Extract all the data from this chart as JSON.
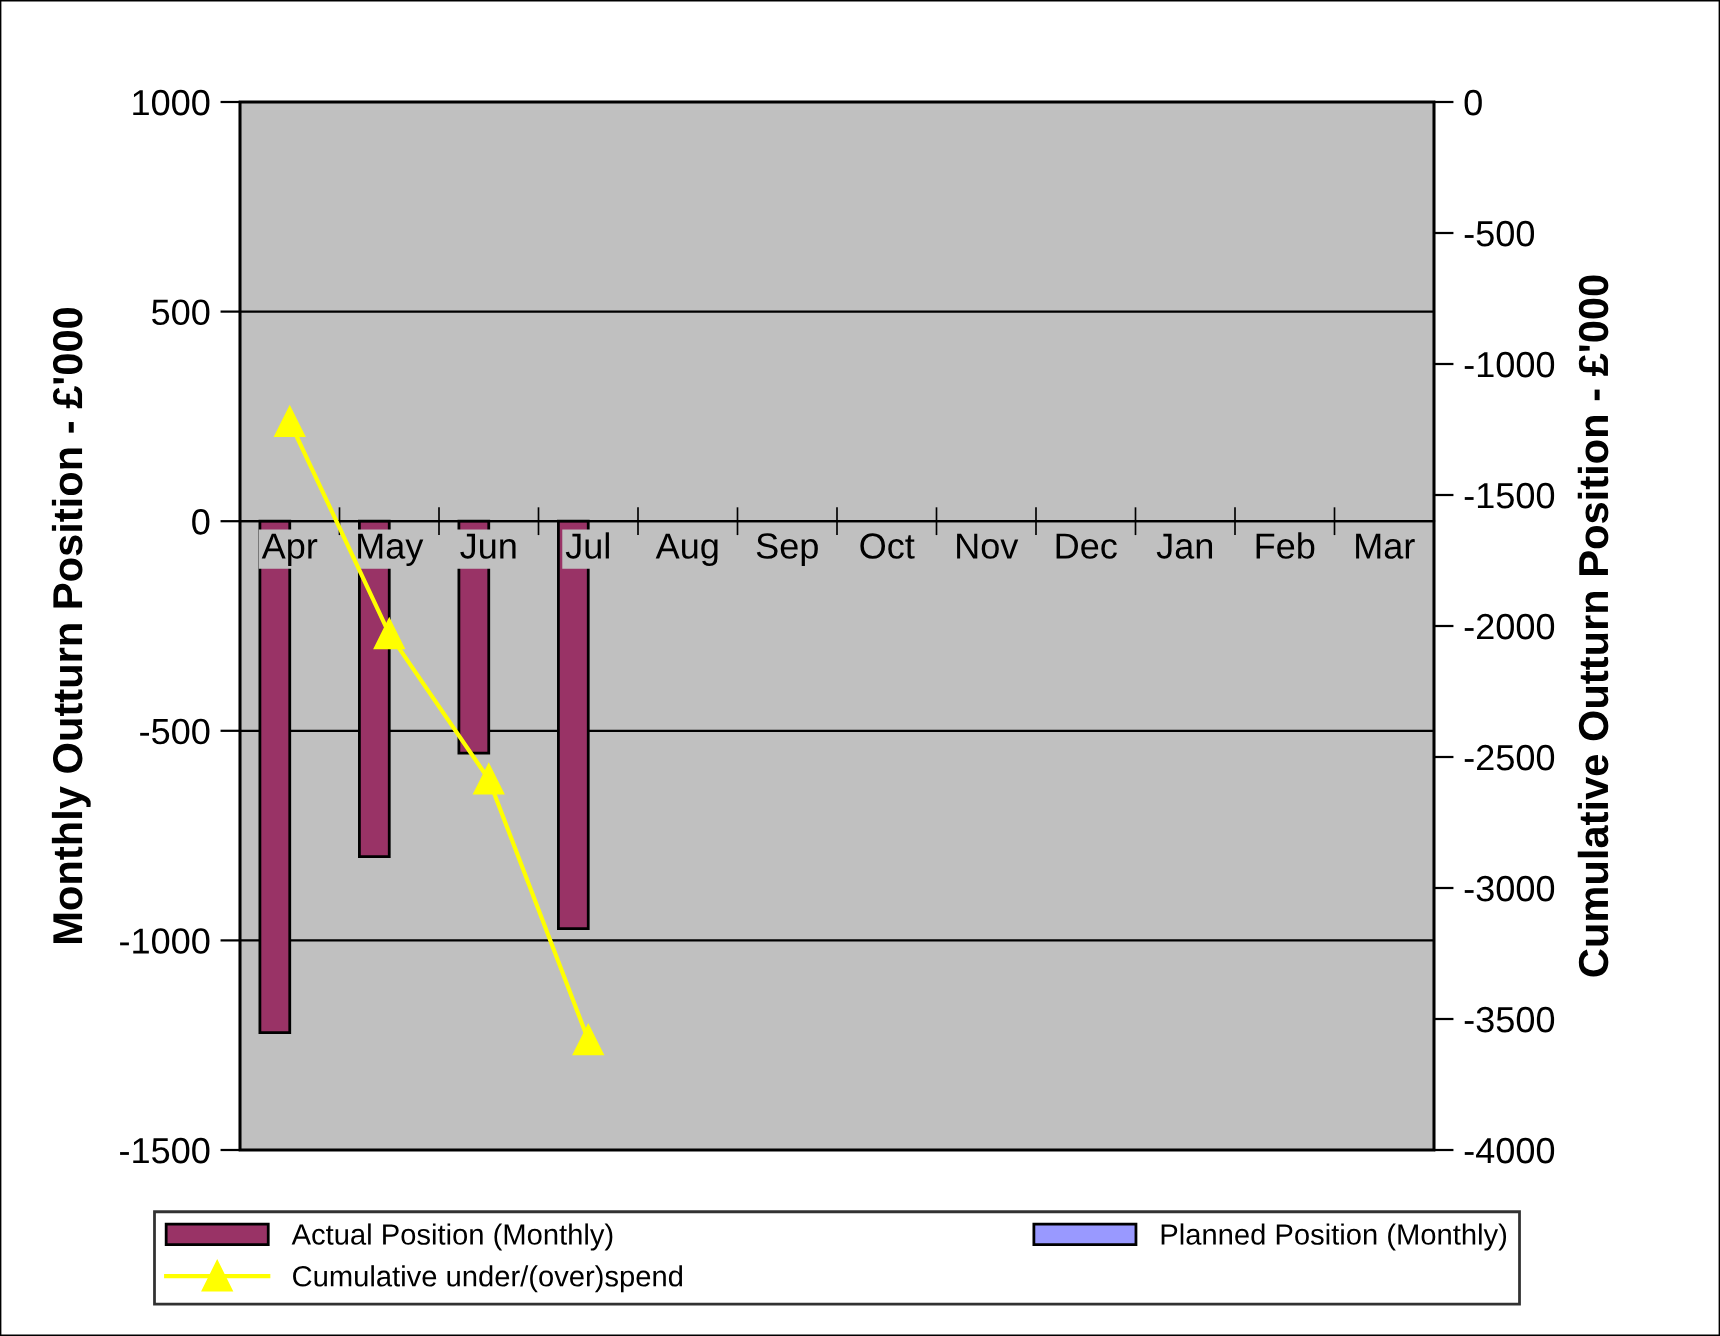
{
  "chart_data": {
    "type": "bar",
    "ylabel": "Monthly Outturn Position - £'000",
    "y2label": "Cumulative Outturn Position - £'000",
    "categories": [
      "Apr",
      "May",
      "Jun",
      "Jul",
      "Aug",
      "Sep",
      "Oct",
      "Nov",
      "Dec",
      "Jan",
      "Feb",
      "Mar"
    ],
    "series": [
      {
        "name": "Actual Position (Monthly)",
        "color": "#993366",
        "values": [
          -1220,
          -800,
          -553,
          -972,
          null,
          null,
          null,
          null,
          null,
          null,
          null,
          null
        ]
      },
      {
        "name": "Planned Position (Monthly)",
        "color": "#9999ff",
        "values": [
          null,
          null,
          null,
          null,
          null,
          null,
          null,
          null,
          null,
          null,
          null,
          null
        ]
      },
      {
        "name": "Cumulative under/(over)spend",
        "type": "line",
        "axis": "y2",
        "color": "#ffff00",
        "marker": "triangle",
        "values": [
          -1220,
          -2030,
          -2585,
          -3580,
          null,
          null,
          null,
          null,
          null,
          null,
          null,
          null
        ]
      }
    ],
    "ylim": [
      -1500,
      1000
    ],
    "yticks": [
      -1500,
      -1000,
      -500,
      0,
      500,
      1000
    ],
    "y2lim": [
      -4000,
      0
    ],
    "y2ticks": [
      -4000,
      -3500,
      -3000,
      -2500,
      -2000,
      -1500,
      -1000,
      -500,
      0
    ],
    "grid": "y",
    "legend": "bottom"
  }
}
